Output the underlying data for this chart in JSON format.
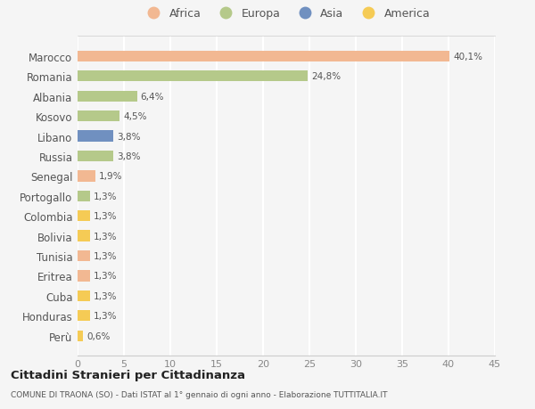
{
  "categories": [
    "Marocco",
    "Romania",
    "Albania",
    "Kosovo",
    "Libano",
    "Russia",
    "Senegal",
    "Portogallo",
    "Colombia",
    "Bolivia",
    "Tunisia",
    "Eritrea",
    "Cuba",
    "Honduras",
    "Perù"
  ],
  "values": [
    40.1,
    24.8,
    6.4,
    4.5,
    3.8,
    3.8,
    1.9,
    1.3,
    1.3,
    1.3,
    1.3,
    1.3,
    1.3,
    1.3,
    0.6
  ],
  "labels": [
    "40,1%",
    "24,8%",
    "6,4%",
    "4,5%",
    "3,8%",
    "3,8%",
    "1,9%",
    "1,3%",
    "1,3%",
    "1,3%",
    "1,3%",
    "1,3%",
    "1,3%",
    "1,3%",
    "0,6%"
  ],
  "colors": [
    "#F2B892",
    "#B5C98A",
    "#B5C98A",
    "#B5C98A",
    "#7090C0",
    "#B5C98A",
    "#F2B892",
    "#B5C98A",
    "#F5CB55",
    "#F5CB55",
    "#F2B892",
    "#F2B892",
    "#F5CB55",
    "#F5CB55",
    "#F5CB55"
  ],
  "legend": [
    {
      "label": "Africa",
      "color": "#F2B892"
    },
    {
      "label": "Europa",
      "color": "#B5C98A"
    },
    {
      "label": "Asia",
      "color": "#7090C0"
    },
    {
      "label": "America",
      "color": "#F5CB55"
    }
  ],
  "xlim": [
    0,
    45
  ],
  "xticks": [
    0,
    5,
    10,
    15,
    20,
    25,
    30,
    35,
    40,
    45
  ],
  "title": "Cittadini Stranieri per Cittadinanza",
  "subtitle": "COMUNE DI TRAONA (SO) - Dati ISTAT al 1° gennaio di ogni anno - Elaborazione TUTTITALIA.IT",
  "background_color": "#f5f5f5",
  "grid_color": "#ffffff",
  "bar_height": 0.55
}
